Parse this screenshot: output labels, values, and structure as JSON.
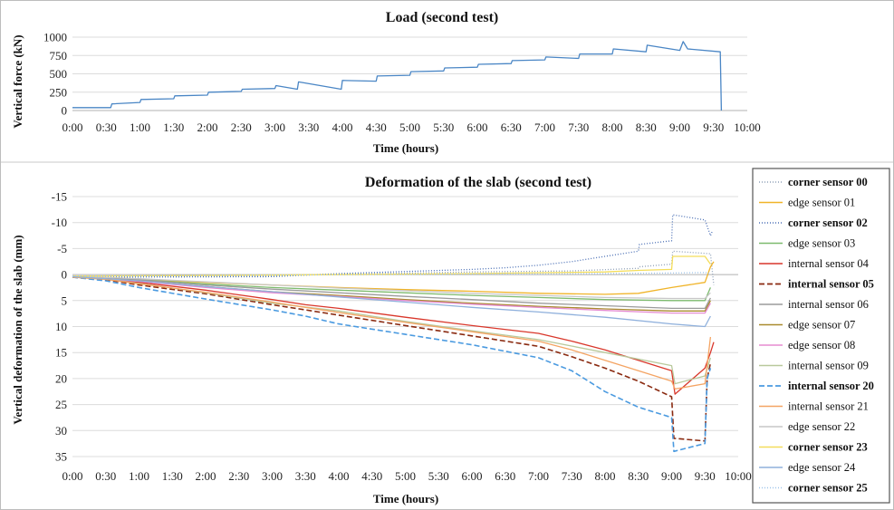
{
  "chart_data": [
    {
      "type": "line",
      "title": "Load  (second test)",
      "xlabel": "Time (hours)",
      "ylabel": "Vertical force (kN)",
      "xlim": [
        "0:00",
        "10:00"
      ],
      "ylim": [
        0,
        1000
      ],
      "x_ticks": [
        "0:00",
        "0:30",
        "1:00",
        "1:30",
        "2:00",
        "2:30",
        "3:00",
        "3:30",
        "4:00",
        "4:30",
        "5:00",
        "5:30",
        "6:00",
        "6:30",
        "7:00",
        "7:30",
        "8:00",
        "8:30",
        "9:00",
        "9:30",
        "10:00"
      ],
      "y_ticks": [
        "0",
        "250",
        "500",
        "750",
        "1000"
      ],
      "grid": "horizontal",
      "series": [
        {
          "color": "#4a86c5",
          "x": [
            "0:00",
            "0:34",
            "0:35",
            "1:00",
            "1:01",
            "1:30",
            "1:31",
            "2:00",
            "2:01",
            "2:30",
            "2:31",
            "3:00",
            "3:01",
            "3:20",
            "3:21",
            "3:59",
            "4:00",
            "4:30",
            "4:31",
            "5:00",
            "5:01",
            "5:30",
            "5:31",
            "6:00",
            "6:01",
            "6:30",
            "6:31",
            "7:00",
            "7:01",
            "7:30",
            "7:31",
            "8:00",
            "8:01",
            "8:30",
            "8:31",
            "9:00",
            "9:03",
            "9:07",
            "9:36",
            "9:37"
          ],
          "values": [
            40,
            40,
            90,
            110,
            150,
            160,
            200,
            210,
            250,
            260,
            290,
            300,
            340,
            290,
            390,
            290,
            410,
            400,
            470,
            480,
            530,
            540,
            580,
            590,
            630,
            640,
            680,
            690,
            730,
            710,
            770,
            770,
            840,
            800,
            890,
            820,
            940,
            840,
            800,
            0
          ]
        }
      ]
    },
    {
      "type": "line",
      "title": "Deformation  of the slab (second test)",
      "xlabel": "Time (hours)",
      "ylabel": "Vertical deformation of the slab (mm)",
      "xlim": [
        "0:00",
        "10:00"
      ],
      "ylim": [
        -15,
        35
      ],
      "y_axis_reversed": true,
      "x_ticks": [
        "0:00",
        "0:30",
        "1:00",
        "1:30",
        "2:00",
        "2:30",
        "3:00",
        "3:30",
        "4:00",
        "4:30",
        "5:00",
        "5:30",
        "6:00",
        "6:30",
        "7:00",
        "7:30",
        "8:00",
        "8:30",
        "9:00",
        "9:30",
        "10:00"
      ],
      "y_ticks": [
        "-15",
        "-10",
        "-5",
        "0",
        "5",
        "10",
        "15",
        "20",
        "25",
        "30",
        "35"
      ],
      "grid": "horizontal",
      "legend_position": "right",
      "series": [
        {
          "name": "corner sensor 00",
          "color": "#8fa0b8",
          "dash": "1,2",
          "bold": true,
          "x": [
            "0:00",
            "3:00",
            "6:00",
            "7:30",
            "8:30",
            "8:31",
            "9:00",
            "9:01",
            "9:35",
            "9:38"
          ],
          "values": [
            0.3,
            0.2,
            -0.5,
            -0.7,
            -1.2,
            -1.5,
            -2,
            -4.5,
            -4,
            2
          ]
        },
        {
          "name": "edge sensor 01",
          "color": "#f0b429",
          "dash": "",
          "bold": false,
          "x": [
            "0:00",
            "1:00",
            "2:00",
            "3:00",
            "4:00",
            "5:00",
            "6:00",
            "7:00",
            "8:00",
            "8:30",
            "9:00",
            "9:30",
            "9:35",
            "9:38"
          ],
          "values": [
            0.4,
            0.9,
            1.5,
            2,
            2.5,
            2.9,
            3.2,
            3.6,
            3.8,
            3.6,
            2.5,
            1.5,
            -1.5,
            -2.5
          ]
        },
        {
          "name": "corner sensor 02",
          "color": "#4a6fb5",
          "dash": "1,2",
          "bold": true,
          "x": [
            "0:00",
            "3:00",
            "4:00",
            "5:00",
            "6:00",
            "6:30",
            "7:00",
            "7:30",
            "8:00",
            "8:30",
            "8:31",
            "9:00",
            "9:01",
            "9:30",
            "9:35",
            "9:37"
          ],
          "values": [
            0.5,
            0.4,
            -0.2,
            -0.6,
            -1,
            -1.3,
            -1.8,
            -2.5,
            -3.5,
            -4.5,
            -5.8,
            -6.5,
            -11.5,
            -10.5,
            -7.5,
            -8.5
          ]
        },
        {
          "name": "edge sensor 03",
          "color": "#7dbb6e",
          "dash": "",
          "bold": false,
          "x": [
            "0:00",
            "1:00",
            "2:00",
            "3:00",
            "4:00",
            "5:00",
            "6:00",
            "7:00",
            "8:00",
            "9:00",
            "9:30",
            "9:35"
          ],
          "values": [
            0.5,
            1,
            1.8,
            2.5,
            3,
            3.5,
            4,
            4.4,
            4.8,
            5,
            5,
            2.5
          ]
        },
        {
          "name": "internal sensor 04",
          "color": "#d9372b",
          "dash": "",
          "bold": false,
          "x": [
            "0:00",
            "0:30",
            "1:00",
            "2:00",
            "3:00",
            "3:30",
            "4:00",
            "5:00",
            "6:00",
            "7:00",
            "7:30",
            "8:00",
            "8:30",
            "9:00",
            "9:03",
            "9:30",
            "9:35",
            "9:38"
          ],
          "values": [
            0.5,
            0.8,
            1.5,
            3,
            4.8,
            5.8,
            6.5,
            8.2,
            9.8,
            11.3,
            12.8,
            14.5,
            16.5,
            18.5,
            23,
            18,
            15,
            13
          ]
        },
        {
          "name": "internal sensor 05",
          "color": "#8a2a10",
          "dash": "6,3",
          "bold": true,
          "x": [
            "0:00",
            "0:30",
            "1:00",
            "2:00",
            "3:00",
            "3:30",
            "4:00",
            "5:00",
            "6:00",
            "7:00",
            "7:30",
            "8:00",
            "8:30",
            "9:00",
            "9:02",
            "9:30",
            "9:32",
            "9:35"
          ],
          "values": [
            0.5,
            1,
            2,
            3.7,
            5.8,
            6.8,
            7.8,
            9.8,
            11.8,
            13.8,
            15.8,
            18,
            20.5,
            23.5,
            31.5,
            32,
            20,
            17
          ]
        },
        {
          "name": "internal sensor 06",
          "color": "#9b9b9b",
          "dash": "",
          "bold": false,
          "x": [
            "0:00",
            "1:00",
            "2:00",
            "3:00",
            "4:00",
            "5:00",
            "6:00",
            "7:00",
            "8:00",
            "9:00",
            "9:30",
            "9:35"
          ],
          "values": [
            0.4,
            1,
            2,
            2.8,
            3.5,
            4.2,
            4.8,
            5.5,
            6,
            6.5,
            6.5,
            4.5
          ]
        },
        {
          "name": "edge sensor 07",
          "color": "#a98a2e",
          "dash": "",
          "bold": false,
          "x": [
            "0:00",
            "1:00",
            "2:00",
            "3:00",
            "4:00",
            "5:00",
            "6:00",
            "7:00",
            "8:00",
            "9:00",
            "9:30",
            "9:35"
          ],
          "values": [
            0.4,
            1.2,
            2.3,
            3.3,
            4,
            4.8,
            5.5,
            6.1,
            6.6,
            7,
            7,
            5
          ]
        },
        {
          "name": "edge sensor 08",
          "color": "#e58bd1",
          "dash": "",
          "bold": false,
          "x": [
            "0:00",
            "1:00",
            "2:00",
            "3:00",
            "4:00",
            "5:00",
            "6:00",
            "7:00",
            "8:00",
            "9:00",
            "9:30",
            "9:35"
          ],
          "values": [
            0.4,
            1.3,
            2.5,
            3.5,
            4.2,
            5,
            5.7,
            6.3,
            6.9,
            7.4,
            7.4,
            5.5
          ]
        },
        {
          "name": "internal sensor 09",
          "color": "#b9c99c",
          "dash": "",
          "bold": false,
          "x": [
            "0:00",
            "0:30",
            "1:00",
            "2:00",
            "3:00",
            "4:00",
            "5:00",
            "6:00",
            "7:00",
            "8:00",
            "9:00",
            "9:03",
            "9:30",
            "9:35"
          ],
          "values": [
            0.5,
            0.9,
            1.7,
            3.5,
            5.5,
            7,
            9,
            10.8,
            12.5,
            15,
            17.5,
            21,
            19.5,
            16
          ]
        },
        {
          "name": "internal sensor 20",
          "color": "#4a9ae0",
          "dash": "6,3",
          "bold": true,
          "x": [
            "0:00",
            "0:30",
            "1:00",
            "2:00",
            "3:00",
            "3:30",
            "4:00",
            "5:00",
            "6:00",
            "7:00",
            "7:30",
            "8:00",
            "8:30",
            "9:00",
            "9:02",
            "9:30",
            "9:32",
            "9:35"
          ],
          "values": [
            0.5,
            1.2,
            2.5,
            4.7,
            6.8,
            8,
            9.5,
            11.5,
            13.5,
            16,
            18.5,
            22.5,
            25.5,
            27.5,
            34,
            32.5,
            20,
            18
          ]
        },
        {
          "name": "internal sensor 21",
          "color": "#f4a463",
          "dash": "",
          "bold": false,
          "x": [
            "0:00",
            "0:30",
            "1:00",
            "2:00",
            "3:00",
            "3:30",
            "4:00",
            "5:00",
            "6:00",
            "7:00",
            "7:30",
            "8:00",
            "8:30",
            "9:00",
            "9:03",
            "9:30",
            "9:35"
          ],
          "values": [
            0.5,
            0.9,
            1.8,
            3.4,
            5.3,
            6.3,
            7.3,
            9.2,
            11,
            12.8,
            14.5,
            16.5,
            18.5,
            20.5,
            22,
            21,
            12
          ]
        },
        {
          "name": "edge sensor 22",
          "color": "#c7c7c7",
          "dash": "",
          "bold": false,
          "x": [
            "0:00",
            "1:00",
            "2:00",
            "3:00",
            "4:00",
            "5:00",
            "6:00",
            "7:00",
            "8:00",
            "9:00",
            "9:30",
            "9:35"
          ],
          "values": [
            0.3,
            0.8,
            1.4,
            2,
            2.6,
            3.1,
            3.6,
            4,
            4.4,
            4.6,
            4.6,
            3.5
          ]
        },
        {
          "name": "corner sensor 23",
          "color": "#f4dd5a",
          "dash": "",
          "bold": true,
          "x": [
            "0:00",
            "3:00",
            "6:00",
            "8:00",
            "8:30",
            "9:00",
            "9:01",
            "9:30",
            "9:35"
          ],
          "values": [
            0.3,
            0.1,
            -0.2,
            -0.5,
            -0.8,
            -1,
            -3.5,
            -3.5,
            -2
          ]
        },
        {
          "name": "edge sensor 24",
          "color": "#8fb0dc",
          "dash": "",
          "bold": false,
          "x": [
            "0:00",
            "1:00",
            "2:00",
            "3:00",
            "4:00",
            "5:00",
            "6:00",
            "7:00",
            "8:00",
            "9:00",
            "9:30",
            "9:35"
          ],
          "values": [
            0.4,
            1.2,
            2.3,
            3.3,
            4.3,
            5.3,
            6.3,
            7.2,
            8.2,
            9.5,
            10,
            8
          ]
        },
        {
          "name": "corner sensor 25",
          "color": "#9ec4ea",
          "dash": "1,2",
          "bold": true,
          "x": [
            "0:00",
            "3:00",
            "6:00",
            "8:00",
            "9:00",
            "9:30",
            "9:35"
          ],
          "values": [
            0.3,
            0.1,
            -0.1,
            -0.2,
            -0.3,
            -0.4,
            -0.2
          ]
        }
      ]
    }
  ]
}
